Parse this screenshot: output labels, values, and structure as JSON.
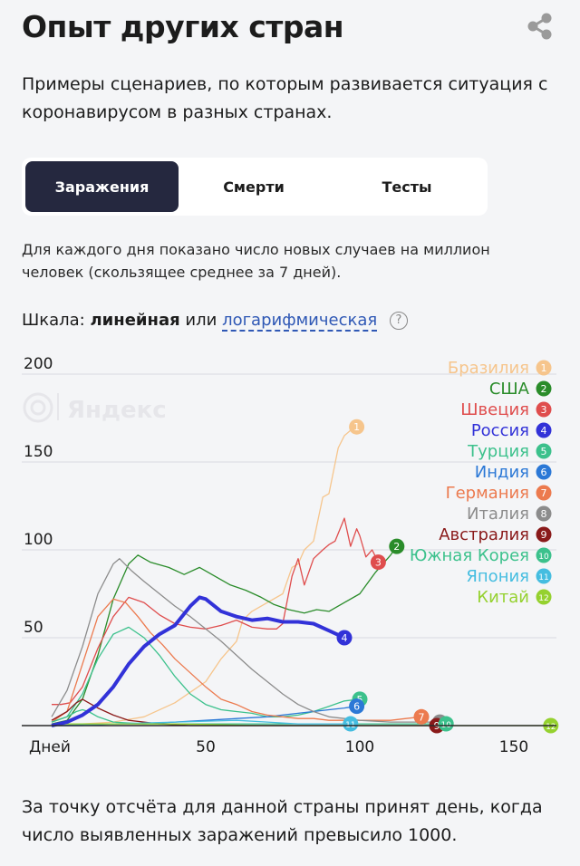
{
  "page": {
    "title": "Опыт других стран",
    "lead": "Примеры сценариев, по которым развивается ситуация с коронавирусом в разных странах.",
    "footnote": "За точку отсчёта для данной страны принят день, когда число выявленных заражений превысило 1000."
  },
  "tabs": {
    "items": [
      {
        "label": "Заражения",
        "active": true
      },
      {
        "label": "Смерти",
        "active": false
      },
      {
        "label": "Тесты",
        "active": false
      }
    ]
  },
  "description": "Для каждого дня показано число новых случаев на миллион человек (скользящее среднее за 7 дней).",
  "scale": {
    "prefix": "Шкала:",
    "linear": "линейная",
    "or": "или",
    "log": "логарифмическая",
    "help": "?"
  },
  "watermark": "Яндекс",
  "colors": {
    "accent": "#25283f",
    "link": "#2f58b5"
  },
  "chart_data": {
    "type": "line",
    "xlabel": "Дней",
    "ylabel": "",
    "xlim": [
      0,
      160
    ],
    "ylim": [
      0,
      200
    ],
    "x_ticks": [
      50,
      100,
      150
    ],
    "y_ticks": [
      50,
      100,
      150,
      200
    ],
    "grid": true,
    "legend": "top-right",
    "series": [
      {
        "name": "Бразилия",
        "num": "1",
        "color": "#f6c58c",
        "points": [
          [
            0,
            1
          ],
          [
            10,
            1
          ],
          [
            20,
            2
          ],
          [
            30,
            5
          ],
          [
            40,
            13
          ],
          [
            50,
            25
          ],
          [
            55,
            38
          ],
          [
            60,
            48
          ],
          [
            62,
            60
          ],
          [
            65,
            65
          ],
          [
            70,
            70
          ],
          [
            75,
            75
          ],
          [
            78,
            90
          ],
          [
            80,
            92
          ],
          [
            82,
            100
          ],
          [
            85,
            105
          ],
          [
            88,
            130
          ],
          [
            90,
            132
          ],
          [
            93,
            158
          ],
          [
            95,
            165
          ],
          [
            97,
            168
          ],
          [
            99,
            170
          ]
        ]
      },
      {
        "name": "США",
        "num": "2",
        "color": "#2a8c2a",
        "points": [
          [
            0,
            1
          ],
          [
            5,
            3
          ],
          [
            10,
            15
          ],
          [
            15,
            40
          ],
          [
            20,
            72
          ],
          [
            25,
            92
          ],
          [
            28,
            97
          ],
          [
            32,
            93
          ],
          [
            38,
            90
          ],
          [
            43,
            86
          ],
          [
            48,
            90
          ],
          [
            52,
            86
          ],
          [
            58,
            80
          ],
          [
            63,
            77
          ],
          [
            68,
            73
          ],
          [
            72,
            69
          ],
          [
            77,
            66
          ],
          [
            82,
            64
          ],
          [
            86,
            66
          ],
          [
            90,
            65
          ],
          [
            95,
            70
          ],
          [
            100,
            75
          ],
          [
            105,
            87
          ],
          [
            110,
            97
          ],
          [
            112,
            102
          ]
        ]
      },
      {
        "name": "Швеция",
        "num": "3",
        "color": "#df4d4d",
        "points": [
          [
            0,
            12
          ],
          [
            3,
            12
          ],
          [
            6,
            13
          ],
          [
            10,
            22
          ],
          [
            15,
            44
          ],
          [
            20,
            62
          ],
          [
            25,
            73
          ],
          [
            30,
            70
          ],
          [
            35,
            63
          ],
          [
            40,
            58
          ],
          [
            45,
            56
          ],
          [
            50,
            55
          ],
          [
            55,
            57
          ],
          [
            60,
            60
          ],
          [
            65,
            56
          ],
          [
            70,
            55
          ],
          [
            73,
            55
          ],
          [
            75,
            58
          ],
          [
            78,
            85
          ],
          [
            80,
            95
          ],
          [
            82,
            80
          ],
          [
            85,
            95
          ],
          [
            88,
            100
          ],
          [
            90,
            103
          ],
          [
            92,
            105
          ],
          [
            95,
            118
          ],
          [
            97,
            102
          ],
          [
            99,
            112
          ],
          [
            100,
            108
          ],
          [
            102,
            96
          ],
          [
            104,
            100
          ],
          [
            106,
            93
          ]
        ]
      },
      {
        "name": "Россия",
        "num": "4",
        "color": "#3232d8",
        "width": 4,
        "points": [
          [
            0,
            0
          ],
          [
            5,
            2
          ],
          [
            10,
            6
          ],
          [
            15,
            12
          ],
          [
            20,
            22
          ],
          [
            25,
            35
          ],
          [
            30,
            45
          ],
          [
            35,
            52
          ],
          [
            40,
            57
          ],
          [
            45,
            68
          ],
          [
            48,
            73
          ],
          [
            50,
            72
          ],
          [
            55,
            65
          ],
          [
            60,
            62
          ],
          [
            65,
            60
          ],
          [
            70,
            61
          ],
          [
            75,
            59
          ],
          [
            80,
            59
          ],
          [
            85,
            58
          ],
          [
            90,
            54
          ],
          [
            95,
            50
          ]
        ]
      },
      {
        "name": "Турция",
        "num": "5",
        "color": "#3cc18c",
        "points": [
          [
            0,
            2
          ],
          [
            5,
            5
          ],
          [
            10,
            18
          ],
          [
            15,
            38
          ],
          [
            20,
            52
          ],
          [
            25,
            56
          ],
          [
            30,
            50
          ],
          [
            35,
            40
          ],
          [
            40,
            28
          ],
          [
            45,
            18
          ],
          [
            50,
            12
          ],
          [
            55,
            9
          ],
          [
            60,
            8
          ],
          [
            65,
            7
          ],
          [
            70,
            5
          ],
          [
            75,
            5
          ],
          [
            80,
            6
          ],
          [
            85,
            8
          ],
          [
            90,
            11
          ],
          [
            95,
            14
          ],
          [
            100,
            15
          ]
        ]
      },
      {
        "name": "Индия",
        "num": "6",
        "color": "#2b78d6",
        "points": [
          [
            0,
            0
          ],
          [
            10,
            0
          ],
          [
            20,
            1
          ],
          [
            30,
            1
          ],
          [
            40,
            2
          ],
          [
            50,
            3
          ],
          [
            60,
            4
          ],
          [
            70,
            5
          ],
          [
            80,
            7
          ],
          [
            90,
            9
          ],
          [
            95,
            10
          ],
          [
            99,
            11
          ]
        ]
      },
      {
        "name": "Германия",
        "num": "7",
        "color": "#ec7a4e",
        "points": [
          [
            0,
            2
          ],
          [
            5,
            8
          ],
          [
            10,
            35
          ],
          [
            15,
            62
          ],
          [
            20,
            72
          ],
          [
            24,
            70
          ],
          [
            28,
            62
          ],
          [
            32,
            53
          ],
          [
            36,
            46
          ],
          [
            40,
            38
          ],
          [
            45,
            30
          ],
          [
            50,
            22
          ],
          [
            55,
            15
          ],
          [
            60,
            12
          ],
          [
            65,
            8
          ],
          [
            70,
            6
          ],
          [
            75,
            5
          ],
          [
            80,
            4
          ],
          [
            85,
            4
          ],
          [
            90,
            3
          ],
          [
            100,
            3
          ],
          [
            110,
            3
          ],
          [
            115,
            4
          ],
          [
            120,
            5
          ]
        ]
      },
      {
        "name": "Италия",
        "num": "8",
        "color": "#8c8c8c",
        "points": [
          [
            0,
            5
          ],
          [
            5,
            20
          ],
          [
            10,
            45
          ],
          [
            15,
            75
          ],
          [
            20,
            92
          ],
          [
            22,
            95
          ],
          [
            26,
            88
          ],
          [
            30,
            82
          ],
          [
            35,
            75
          ],
          [
            40,
            68
          ],
          [
            45,
            62
          ],
          [
            50,
            55
          ],
          [
            55,
            48
          ],
          [
            60,
            40
          ],
          [
            65,
            32
          ],
          [
            70,
            25
          ],
          [
            75,
            18
          ],
          [
            80,
            12
          ],
          [
            85,
            8
          ],
          [
            90,
            5
          ],
          [
            95,
            4
          ],
          [
            100,
            3
          ],
          [
            110,
            2
          ],
          [
            120,
            2
          ],
          [
            126,
            2
          ]
        ]
      },
      {
        "name": "Австралия",
        "num": "9",
        "color": "#8a1a1a",
        "points": [
          [
            0,
            3
          ],
          [
            5,
            8
          ],
          [
            8,
            13
          ],
          [
            10,
            15
          ],
          [
            12,
            13
          ],
          [
            15,
            10
          ],
          [
            20,
            6
          ],
          [
            25,
            3
          ],
          [
            30,
            2
          ],
          [
            35,
            1
          ],
          [
            45,
            0
          ],
          [
            60,
            0
          ],
          [
            80,
            0
          ],
          [
            100,
            0
          ],
          [
            120,
            0
          ],
          [
            125,
            0
          ]
        ]
      },
      {
        "name": "Южная Корея",
        "num": "10",
        "color": "#3cc18c",
        "points": [
          [
            0,
            2
          ],
          [
            5,
            5
          ],
          [
            8,
            8
          ],
          [
            10,
            9
          ],
          [
            12,
            8
          ],
          [
            15,
            5
          ],
          [
            20,
            2
          ],
          [
            30,
            1
          ],
          [
            50,
            1
          ],
          [
            80,
            1
          ],
          [
            100,
            1
          ],
          [
            110,
            1
          ],
          [
            120,
            1
          ],
          [
            128,
            1
          ]
        ]
      },
      {
        "name": "Япония",
        "num": "11",
        "color": "#45bde0",
        "points": [
          [
            0,
            0
          ],
          [
            20,
            1
          ],
          [
            40,
            2
          ],
          [
            60,
            3
          ],
          [
            70,
            2
          ],
          [
            80,
            1
          ],
          [
            90,
            1
          ],
          [
            97,
            1
          ]
        ]
      },
      {
        "name": "Китай",
        "num": "12",
        "color": "#95d12f",
        "points": [
          [
            0,
            1
          ],
          [
            15,
            1
          ],
          [
            40,
            1
          ],
          [
            70,
            0
          ],
          [
            100,
            0
          ],
          [
            130,
            0
          ],
          [
            155,
            0
          ],
          [
            162,
            0
          ]
        ]
      }
    ]
  }
}
